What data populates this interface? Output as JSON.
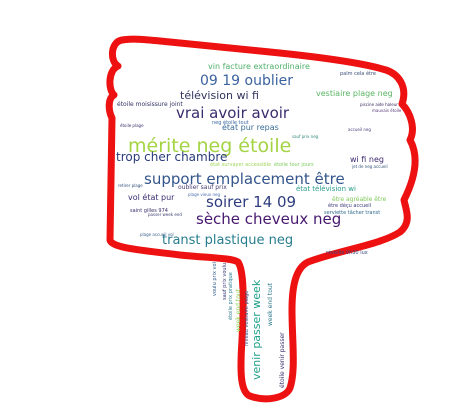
{
  "colors": {
    "outline": "#ee1111",
    "background": "#ffffff"
  },
  "shape_icon": "thumbs-down-icon",
  "words": [
    {
      "text": "mérite neg étoile",
      "color": "#a4d444"
    },
    {
      "text": "support emplacement être",
      "color": "#33558b"
    },
    {
      "text": "sèche cheveux neg",
      "color": "#47186f"
    },
    {
      "text": "vrai avoir avoir",
      "color": "#3a2b6e"
    },
    {
      "text": "soirer 14 09",
      "color": "#2e3d80"
    },
    {
      "text": "09 19 oublier",
      "color": "#3a62a0"
    },
    {
      "text": "transt plastique neg",
      "color": "#287d8e"
    },
    {
      "text": "trop cher chambre",
      "color": "#2a3b7b"
    },
    {
      "text": "télévision wi fi",
      "color": "#33335f"
    },
    {
      "text": "vin facture extraordinaire",
      "color": "#4fb06a"
    },
    {
      "text": "vestiaire plage neg",
      "color": "#5ab463"
    },
    {
      "text": "état pur repas",
      "color": "#3b6d99"
    },
    {
      "text": "wi fi neg",
      "color": "#3c2a70"
    },
    {
      "text": "vol état pur",
      "color": "#3b2c72"
    },
    {
      "text": "venir passer week",
      "color": "#1fa088"
    },
    {
      "text": "état télévision wi",
      "color": "#2a9c89"
    },
    {
      "text": "être agréable être",
      "color": "#80c95b"
    },
    {
      "text": "oublier sauf prix",
      "color": "#483d73"
    },
    {
      "text": "état survayer accessible",
      "color": "#a0d55a"
    },
    {
      "text": "étoile moisissure joint",
      "color": "#333366"
    },
    {
      "text": "palm cela être",
      "color": "#3d4f7a"
    },
    {
      "text": "être déçu accueil",
      "color": "#3d3a7b"
    },
    {
      "text": "serviette tâcher transt",
      "color": "#2f6a8f"
    },
    {
      "text": "réveille 0h30 lux",
      "color": "#3b4a7c"
    },
    {
      "text": "saint gilles 974",
      "color": "#3a2f6b"
    },
    {
      "text": "étoile tour jours",
      "color": "#7fcc5f"
    },
    {
      "text": "neg étoile tout",
      "color": "#3a6aa0"
    },
    {
      "text": "voulu prix vol",
      "color": "#2f5a8a"
    },
    {
      "text": "étoile prix pratique",
      "color": "#2a7b8e"
    },
    {
      "text": "sauf prix voulu",
      "color": "#3c3c7a"
    },
    {
      "text": "niveau vestiaire plage",
      "color": "#3a4f82"
    },
    {
      "text": "étoile venir passer",
      "color": "#3b3270"
    },
    {
      "text": "week end tout",
      "color": "#8bd050"
    },
    {
      "text": "week end tout",
      "color": "#2f7a8c"
    },
    {
      "text": "accueil neg",
      "color": "#4a3d7d"
    },
    {
      "text": "étoile plage",
      "color": "#3a2f6b"
    },
    {
      "text": "passer week end",
      "color": "#3a3a70"
    },
    {
      "text": "jet de neg accueil",
      "color": "#33557a"
    },
    {
      "text": "plage vieux neg",
      "color": "#4f6fb0"
    },
    {
      "text": "retirer plage",
      "color": "#2f4f7a"
    },
    {
      "text": "mauvais étoile",
      "color": "#5a3a7a"
    },
    {
      "text": "piscine aide haleur",
      "color": "#3a2a60"
    },
    {
      "text": "plage accueil vol",
      "color": "#3b5f8a"
    },
    {
      "text": "sauf prix neg",
      "color": "#2f8a7a"
    }
  ]
}
